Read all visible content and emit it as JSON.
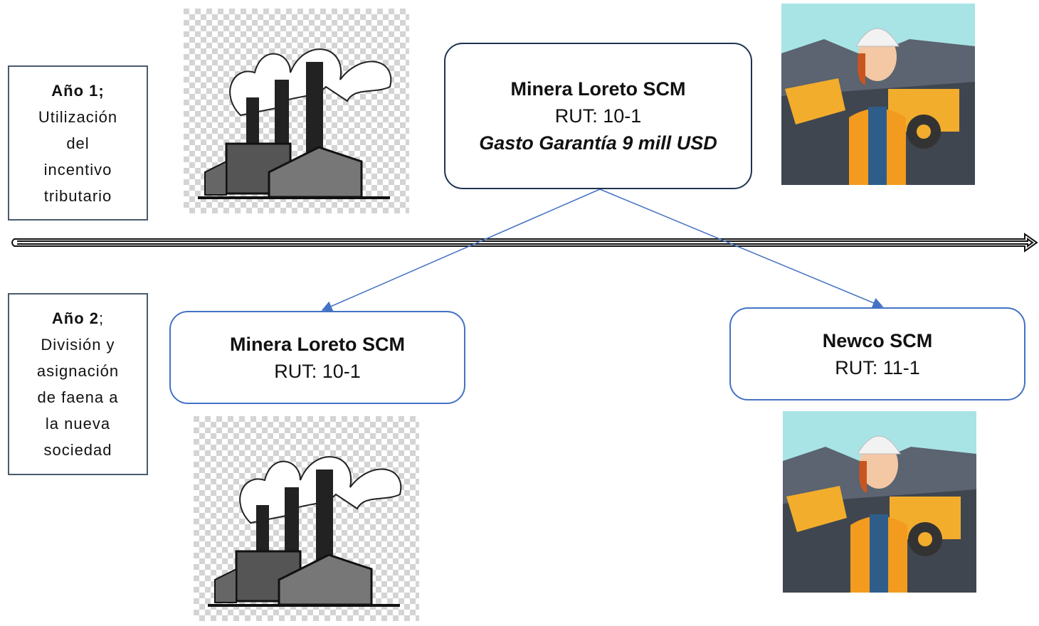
{
  "years": [
    {
      "label": "Año 1;",
      "text": "Utilización del incentivo tributario"
    },
    {
      "label": "Año 2",
      "suffix": ";",
      "text": "División y asignación de faena a la nueva sociedad"
    }
  ],
  "companies": [
    {
      "name": "Minera Loreto SCM",
      "rut": "RUT: 10-1",
      "note": "Gasto Garantía 9 mill USD"
    },
    {
      "name": "Minera Loreto SCM",
      "rut": "RUT: 10-1"
    },
    {
      "name": "Newco SCM",
      "rut": "RUT: 11-1"
    }
  ]
}
